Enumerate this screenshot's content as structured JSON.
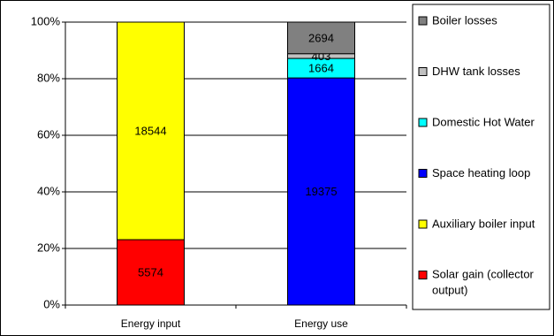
{
  "chart_data": {
    "type": "bar",
    "stacked": "percent",
    "categories": [
      "Energy input",
      "Energy use"
    ],
    "series": [
      {
        "name": "Solar gain (collector output)",
        "color": "#ff0000",
        "values": [
          5574,
          null
        ]
      },
      {
        "name": "Auxiliary boiler input",
        "color": "#ffff00",
        "values": [
          18544,
          null
        ]
      },
      {
        "name": "Space heating loop",
        "color": "#0000ff",
        "values": [
          null,
          19375
        ]
      },
      {
        "name": "Domestic Hot Water",
        "color": "#00ffff",
        "values": [
          null,
          1664
        ]
      },
      {
        "name": "DHW tank losses",
        "color": "#c0c0c0",
        "values": [
          null,
          403
        ]
      },
      {
        "name": "Boiler losses",
        "color": "#808080",
        "values": [
          null,
          2694
        ]
      }
    ],
    "ylim": [
      0,
      100
    ],
    "yticks": [
      {
        "value": 0,
        "label": "0%"
      },
      {
        "value": 20,
        "label": "20%"
      },
      {
        "value": 40,
        "label": "40%"
      },
      {
        "value": 60,
        "label": "60%"
      },
      {
        "value": 80,
        "label": "80%"
      },
      {
        "value": 100,
        "label": "100%"
      }
    ],
    "grid": true,
    "legend": "right"
  }
}
